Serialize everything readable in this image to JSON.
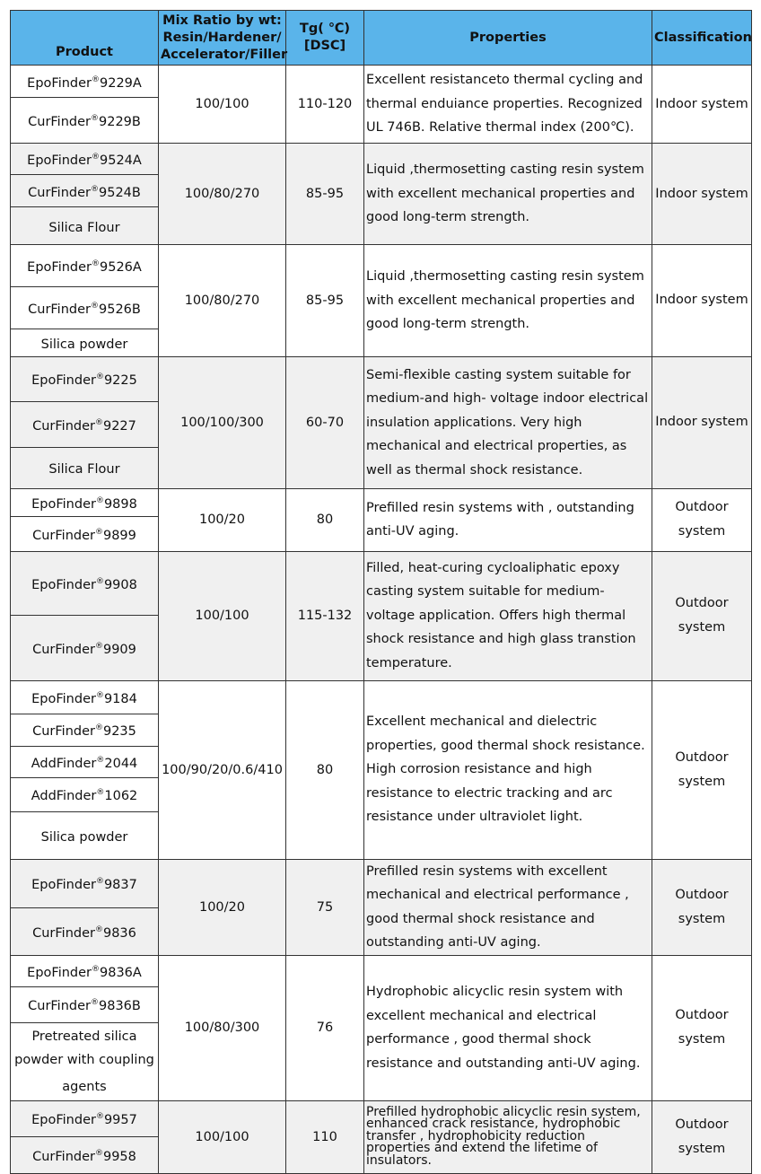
{
  "header": {
    "product": "Product",
    "mix": "Mix Ratio by wt: Resin/Hardener/ Accelerator/Filler",
    "tg": "Tg( ℃) [DSC]",
    "properties": "Properties",
    "classification": "Classification"
  },
  "groups": [
    {
      "products": [
        {
          "name": "EpoFinder",
          "reg": "®",
          "code": "9229A"
        },
        {
          "name": "CurFinder",
          "reg": "®",
          "code": "9229B"
        }
      ],
      "mix": "100/100",
      "tg": "110-120",
      "properties": "Excellent resistanceto thermal cycling and thermal enduiance properties. Recognized UL 746B. Relative thermal index (200℃).",
      "classification": "Indoor system"
    },
    {
      "products": [
        {
          "name": "EpoFinder",
          "reg": "®",
          "code": "9524A"
        },
        {
          "name": "CurFinder",
          "reg": "®",
          "code": "9524B"
        },
        {
          "name": "Silica Flour",
          "reg": "",
          "code": ""
        }
      ],
      "mix": "100/80/270",
      "tg": "85-95",
      "properties": "Liquid ,thermosetting casting resin system with excellent mechanical properties and good long-term strength.",
      "classification": "Indoor system"
    },
    {
      "products": [
        {
          "name": "EpoFinder",
          "reg": "®",
          "code": "9526A"
        },
        {
          "name": "CurFinder",
          "reg": "®",
          "code": "9526B"
        },
        {
          "name": "Silica powder",
          "reg": "",
          "code": ""
        }
      ],
      "mix": "100/80/270",
      "tg": "85-95",
      "properties": "Liquid ,thermosetting casting resin system with excellent mechanical properties and good long-term strength.",
      "classification": "Indoor system"
    },
    {
      "products": [
        {
          "name": "EpoFinder",
          "reg": "®",
          "code": "9225"
        },
        {
          "name": "CurFinder",
          "reg": "®",
          "code": "9227"
        },
        {
          "name": "Silica Flour",
          "reg": "",
          "code": ""
        }
      ],
      "mix": "100/100/300",
      "tg": "60-70",
      "properties": "Semi-flexible casting system suitable for medium-and high- voltage indoor electrical insulation applications. Very high mechanical and electrical properties, as well as thermal shock resistance.",
      "classification": "Indoor system"
    },
    {
      "products": [
        {
          "name": "EpoFinder",
          "reg": "®",
          "code": "9898"
        },
        {
          "name": "CurFinder",
          "reg": "®",
          "code": "9899"
        }
      ],
      "mix": "100/20",
      "tg": "80",
      "properties": "Prefilled resin systems with , outstanding anti-UV aging.",
      "classification": "Outdoor system"
    },
    {
      "products": [
        {
          "name": "EpoFinder",
          "reg": "®",
          "code": "9908"
        },
        {
          "name": "CurFinder",
          "reg": "®",
          "code": "9909"
        }
      ],
      "mix": "100/100",
      "tg": "115-132",
      "properties": "Filled, heat-curing cycloaliphatic epoxy casting system suitable for medium-voltage application. Offers high thermal shock resistance and high glass transtion temperature.",
      "classification": "Outdoor system"
    },
    {
      "products": [
        {
          "name": "EpoFinder",
          "reg": "®",
          "code": "9184"
        },
        {
          "name": "CurFinder",
          "reg": "®",
          "code": "9235"
        },
        {
          "name": "AddFinder",
          "reg": "®",
          "code": "2044"
        },
        {
          "name": "AddFinder",
          "reg": "®",
          "code": "1062"
        },
        {
          "name": "Silica powder",
          "reg": "",
          "code": ""
        }
      ],
      "mix": "100/90/20/0.6/410",
      "tg": "80",
      "properties": "Excellent mechanical and dielectric properties, good thermal shock resistance. High corrosion resistance and high resistance to electric tracking and arc resistance under ultraviolet light.",
      "classification": "Outdoor system"
    },
    {
      "products": [
        {
          "name": "EpoFinder",
          "reg": "®",
          "code": "9837"
        },
        {
          "name": "CurFinder",
          "reg": "®",
          "code": "9836"
        }
      ],
      "mix": "100/20",
      "tg": "75",
      "properties": "Prefilled resin systems with excellent mechanical and electrical performance , good thermal shock resistance and outstanding anti-UV aging.",
      "classification": "Outdoor system"
    },
    {
      "products": [
        {
          "name": "EpoFinder",
          "reg": "®",
          "code": "9836A"
        },
        {
          "name": "CurFinder",
          "reg": "®",
          "code": "9836B"
        },
        {
          "name": "Pretreated silica powder with coupling agents",
          "reg": "",
          "code": ""
        }
      ],
      "mix": "100/80/300",
      "tg": "76",
      "properties": "Hydrophobic alicyclic resin system with excellent mechanical and electrical performance , good thermal shock resistance and outstanding anti-UV aging.",
      "classification": "Outdoor system"
    },
    {
      "products": [
        {
          "name": "EpoFinder",
          "reg": "®",
          "code": "9957"
        },
        {
          "name": "CurFinder",
          "reg": "®",
          "code": "9958"
        }
      ],
      "mix": "100/100",
      "tg": "110",
      "properties": "Prefilled hydrophobic alicyclic resin system, enhanced crack resistance, hydrophobic transfer , hydrophobicity reduction properties and extend the lifetime of insulators.",
      "classification": "Outdoor system"
    }
  ]
}
